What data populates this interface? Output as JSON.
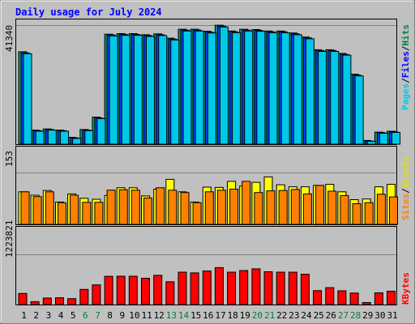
{
  "chart_data": {
    "type": "bar",
    "title": "Daily usage for July 2024",
    "days": [
      "1",
      "2",
      "3",
      "4",
      "5",
      "6",
      "7",
      "8",
      "9",
      "10",
      "11",
      "12",
      "13",
      "14",
      "15",
      "16",
      "17",
      "18",
      "19",
      "20",
      "21",
      "22",
      "23",
      "24",
      "25",
      "26",
      "27",
      "28",
      "29",
      "30",
      "31"
    ],
    "weekend_days": [
      "6",
      "7",
      "13",
      "14",
      "20",
      "21",
      "27",
      "28"
    ],
    "panels": {
      "top": {
        "max_label": "41340",
        "ymax": 41340,
        "legend": [
          {
            "text": "Pages",
            "color": "#00c8e8"
          },
          {
            "text": "/",
            "color": "#000000"
          },
          {
            "text": "Files",
            "color": "#0000ff"
          },
          {
            "text": "/",
            "color": "#000000"
          },
          {
            "text": "Hits",
            "color": "#008040"
          }
        ],
        "series": [
          {
            "name": "Hits",
            "color": "#00a070",
            "values": [
              32100,
              4900,
              5300,
              4900,
              2400,
              5100,
              9400,
              38200,
              38400,
              38400,
              38000,
              38300,
              36800,
              39900,
              39900,
              39200,
              41300,
              39300,
              39900,
              39800,
              39300,
              39300,
              38600,
              37200,
              32800,
              32800,
              31500,
              24300,
              1300,
              4200,
              4500
            ]
          },
          {
            "name": "Files",
            "color": "#0040ff",
            "values": [
              31700,
              4700,
              5100,
              4700,
              2200,
              4900,
              9100,
              37900,
              38100,
              38100,
              37700,
              38000,
              36500,
              39600,
              39600,
              38900,
              41000,
              39000,
              39600,
              39500,
              39000,
              39000,
              38300,
              36900,
              32500,
              32500,
              31200,
              24000,
              1100,
              4000,
              4300
            ]
          },
          {
            "name": "Pages",
            "color": "#00c8e8",
            "values": [
              31400,
              4500,
              4900,
              4500,
              2000,
              4700,
              8900,
              37600,
              37800,
              37800,
              37400,
              37700,
              36200,
              39300,
              39300,
              38600,
              40700,
              38700,
              39300,
              39200,
              38700,
              38700,
              38000,
              36600,
              32200,
              32200,
              30900,
              23700,
              1000,
              3800,
              4100
            ]
          }
        ]
      },
      "mid": {
        "max_label": "153",
        "ymax": 153,
        "legend": [
          {
            "text": "Sites",
            "color": "#ff8000"
          },
          {
            "text": "/",
            "color": "#000000"
          },
          {
            "text": "Visits",
            "color": "#e0e000"
          }
        ],
        "series": [
          {
            "name": "Visits",
            "color": "#ffff00",
            "values": [
              96,
              86,
              100,
              66,
              90,
              77,
              74,
              85,
              108,
              108,
              84,
              104,
              133,
              96,
              66,
              110,
              109,
              127,
              113,
              124,
              140,
              117,
              111,
              111,
              115,
              118,
              96,
              73,
              75,
              111,
              118
            ]
          },
          {
            "name": "Sites",
            "color": "#ff8000",
            "values": [
              96,
              82,
              96,
              64,
              86,
              65,
              65,
              101,
              102,
              101,
              78,
              108,
              101,
              94,
              64,
              96,
              101,
              104,
              127,
              94,
              99,
              100,
              103,
              90,
              115,
              98,
              85,
              61,
              64,
              89,
              81
            ]
          }
        ]
      },
      "bot": {
        "max_label": "1223821",
        "ymax": 1223821,
        "legend": [
          {
            "text": "KBytes",
            "color": "#ff0000"
          }
        ],
        "series": [
          {
            "name": "KBytes",
            "color": "#ff0000",
            "values": [
              270000,
              72000,
              160000,
              165000,
              145000,
              370000,
              480000,
              688000,
              690000,
              690000,
              642000,
              712000,
              556000,
              790000,
              772000,
              820000,
              900000,
              790000,
              830000,
              870000,
              800000,
              790000,
              790000,
              740000,
              339000,
              412000,
              335000,
              281000,
              49000,
              287000,
              325000
            ]
          }
        ]
      }
    }
  }
}
